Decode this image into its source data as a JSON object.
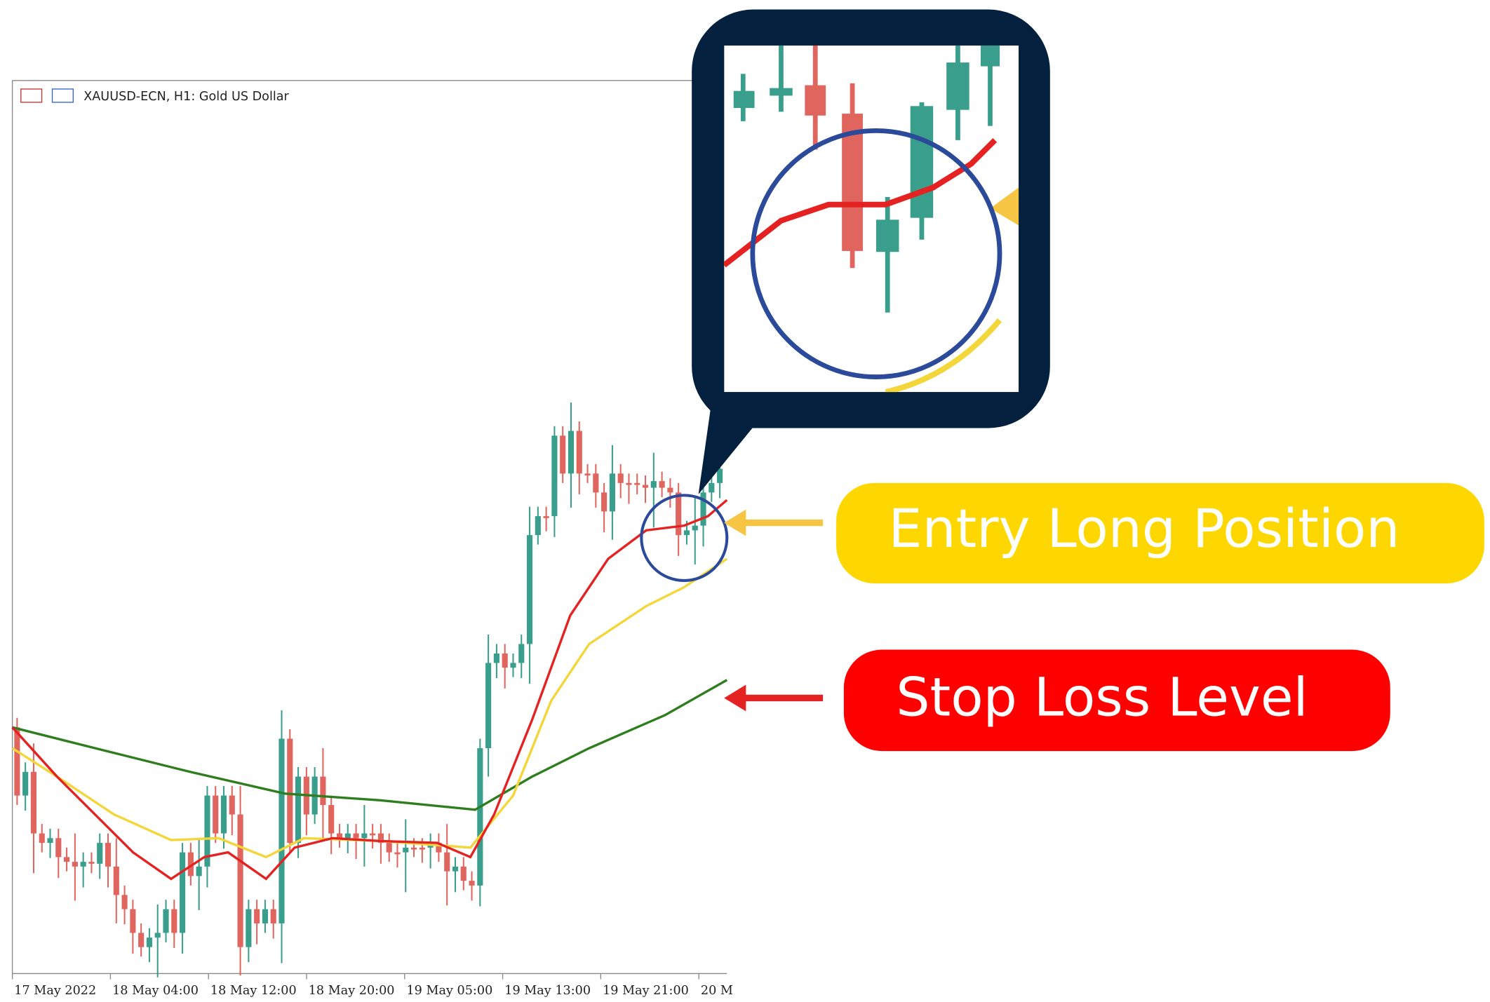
{
  "window": {
    "title": "XAUUSD-ECN, H1:  Gold US Dollar",
    "x_labels": [
      "17 May 2022",
      "18 May 04:00",
      "18 May 12:00",
      "18 May 20:00",
      "19 May 05:00",
      "19 May 13:00",
      "19 May 21:00",
      "20 M"
    ]
  },
  "annotations": {
    "entry": "Entry Long Position",
    "stop": "Stop Loss Level"
  }
}
